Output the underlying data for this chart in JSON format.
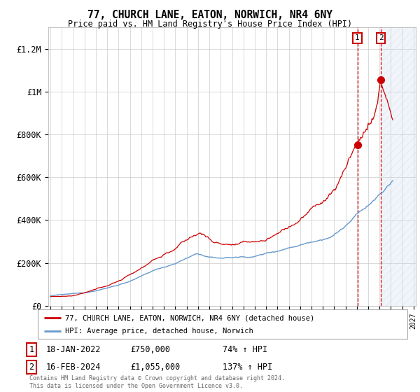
{
  "title": "77, CHURCH LANE, EATON, NORWICH, NR4 6NY",
  "subtitle": "Price paid vs. HM Land Registry's House Price Index (HPI)",
  "legend_line1": "77, CHURCH LANE, EATON, NORWICH, NR4 6NY (detached house)",
  "legend_line2": "HPI: Average price, detached house, Norwich",
  "sale1_date": "18-JAN-2022",
  "sale1_price": 750000,
  "sale1_hpi": "74%",
  "sale2_date": "16-FEB-2024",
  "sale2_price": 1055000,
  "sale2_hpi": "137%",
  "footnote": "Contains HM Land Registry data © Crown copyright and database right 2024.\nThis data is licensed under the Open Government Licence v3.0.",
  "red_color": "#cc0000",
  "blue_color": "#6699cc",
  "hatch_color": "#c8d8ee",
  "background_color": "#ffffff",
  "grid_color": "#cccccc",
  "ylim": [
    0,
    1300000
  ],
  "yticks": [
    0,
    200000,
    400000,
    600000,
    800000,
    1000000,
    1200000
  ],
  "ytick_labels": [
    "£0",
    "£200K",
    "£400K",
    "£600K",
    "£800K",
    "£1M",
    "£1.2M"
  ],
  "year_start": 1995,
  "year_end": 2027,
  "sale1_x": 2022.05,
  "sale2_x": 2024.12
}
